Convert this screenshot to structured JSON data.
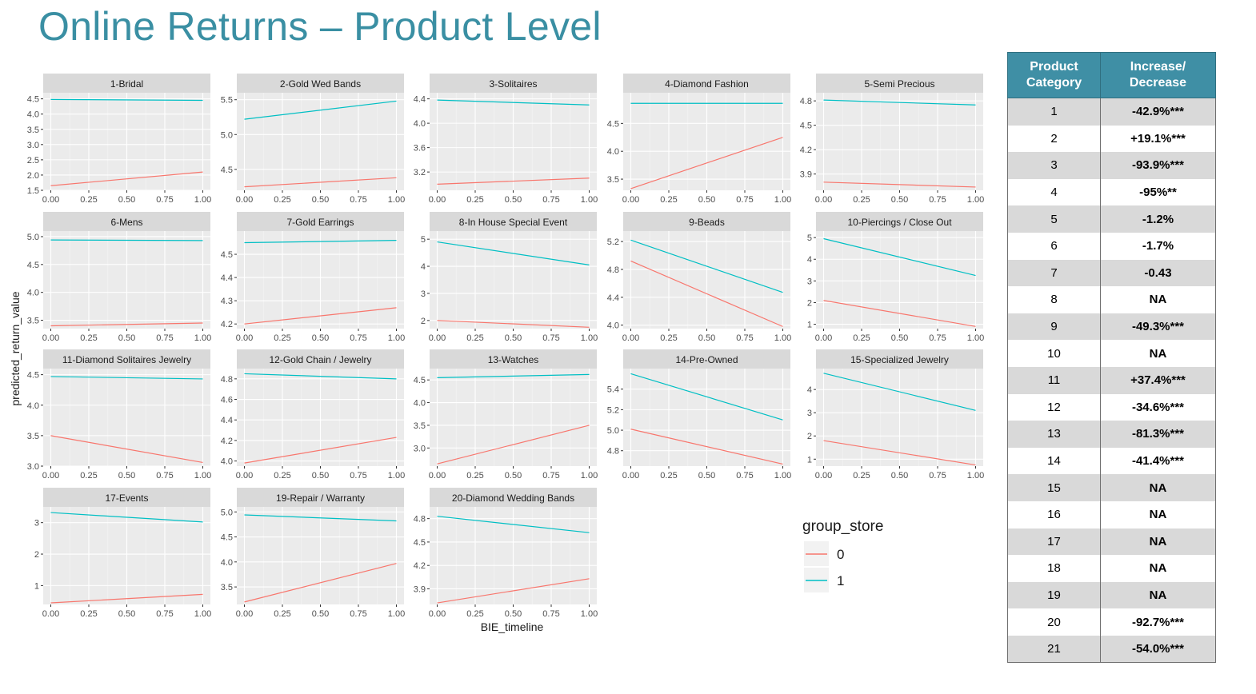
{
  "slide": {
    "title": "Online Returns – Product Level"
  },
  "chart_data": {
    "type": "line",
    "xlabel": "BIE_timeline",
    "ylabel": "predicted_return_value",
    "x": [
      0,
      1
    ],
    "x_ticks": [
      "0.00",
      "0.25",
      "0.50",
      "0.75",
      "1.00"
    ],
    "legend": {
      "title": "group_store",
      "entries": [
        "0",
        "1"
      ],
      "colors": [
        "#f8766d",
        "#00bfc4"
      ],
      "position": "bottom-right"
    },
    "panels": [
      {
        "title": "1-Bridal",
        "ylim": [
          1.5,
          4.7
        ],
        "yticks": [
          "1.5",
          "2.0",
          "2.5",
          "3.0",
          "3.5",
          "4.0",
          "4.5"
        ],
        "series": [
          {
            "name": "0",
            "values": [
              1.65,
              2.1
            ]
          },
          {
            "name": "1",
            "values": [
              4.48,
              4.45
            ]
          }
        ]
      },
      {
        "title": "2-Gold Wed Bands",
        "ylim": [
          4.2,
          5.6
        ],
        "yticks": [
          "4.5",
          "5.0",
          "5.5"
        ],
        "series": [
          {
            "name": "0",
            "values": [
              4.25,
              4.38
            ]
          },
          {
            "name": "1",
            "values": [
              5.22,
              5.48
            ]
          }
        ]
      },
      {
        "title": "3-Solitaires",
        "ylim": [
          2.9,
          4.5
        ],
        "yticks": [
          "3.2",
          "3.6",
          "4.0",
          "4.4"
        ],
        "series": [
          {
            "name": "0",
            "values": [
              3.0,
              3.1
            ]
          },
          {
            "name": "1",
            "values": [
              4.38,
              4.3
            ]
          }
        ]
      },
      {
        "title": "4-Diamond Fashion",
        "ylim": [
          3.3,
          5.05
        ],
        "yticks": [
          "3.5",
          "4.0",
          "4.5"
        ],
        "series": [
          {
            "name": "0",
            "values": [
              3.33,
              4.25
            ]
          },
          {
            "name": "1",
            "values": [
              4.86,
              4.86
            ]
          }
        ]
      },
      {
        "title": "5-Semi Precious",
        "ylim": [
          3.7,
          4.9
        ],
        "yticks": [
          "3.9",
          "4.2",
          "4.5",
          "4.8"
        ],
        "series": [
          {
            "name": "0",
            "values": [
              3.8,
              3.74
            ]
          },
          {
            "name": "1",
            "values": [
              4.81,
              4.75
            ]
          }
        ]
      },
      {
        "title": "6-Mens",
        "ylim": [
          3.35,
          5.1
        ],
        "yticks": [
          "3.5",
          "4.0",
          "4.5",
          "5.0"
        ],
        "series": [
          {
            "name": "0",
            "values": [
              3.4,
              3.45
            ]
          },
          {
            "name": "1",
            "values": [
              4.94,
              4.93
            ]
          }
        ]
      },
      {
        "title": "7-Gold Earrings",
        "ylim": [
          4.18,
          4.6
        ],
        "yticks": [
          "4.2",
          "4.3",
          "4.4",
          "4.5"
        ],
        "series": [
          {
            "name": "0",
            "values": [
              4.2,
              4.27
            ]
          },
          {
            "name": "1",
            "values": [
              4.55,
              4.56
            ]
          }
        ]
      },
      {
        "title": "8-In House Special Event",
        "ylim": [
          1.7,
          5.3
        ],
        "yticks": [
          "2",
          "3",
          "4",
          "5"
        ],
        "series": [
          {
            "name": "0",
            "values": [
              2.0,
              1.75
            ]
          },
          {
            "name": "1",
            "values": [
              4.9,
              4.05
            ]
          }
        ]
      },
      {
        "title": "9-Beads",
        "ylim": [
          3.95,
          5.35
        ],
        "yticks": [
          "4.0",
          "4.4",
          "4.8",
          "5.2"
        ],
        "series": [
          {
            "name": "0",
            "values": [
              4.92,
              3.98
            ]
          },
          {
            "name": "1",
            "values": [
              5.22,
              4.47
            ]
          }
        ]
      },
      {
        "title": "10-Piercings / Close Out",
        "ylim": [
          0.8,
          5.3
        ],
        "yticks": [
          "1",
          "2",
          "3",
          "4",
          "5"
        ],
        "series": [
          {
            "name": "0",
            "values": [
              2.1,
              0.9
            ]
          },
          {
            "name": "1",
            "values": [
              4.95,
              3.25
            ]
          }
        ]
      },
      {
        "title": "11-Diamond Solitaires Jewelry",
        "ylim": [
          3.0,
          4.6
        ],
        "yticks": [
          "3.0",
          "3.5",
          "4.0",
          "4.5"
        ],
        "series": [
          {
            "name": "0",
            "values": [
              3.5,
              3.06
            ]
          },
          {
            "name": "1",
            "values": [
              4.47,
              4.43
            ]
          }
        ]
      },
      {
        "title": "12-Gold Chain / Jewelry",
        "ylim": [
          3.95,
          4.9
        ],
        "yticks": [
          "4.0",
          "4.2",
          "4.4",
          "4.6",
          "4.8"
        ],
        "series": [
          {
            "name": "0",
            "values": [
              3.98,
              4.23
            ]
          },
          {
            "name": "1",
            "values": [
              4.85,
              4.8
            ]
          }
        ]
      },
      {
        "title": "13-Watches",
        "ylim": [
          2.6,
          4.75
        ],
        "yticks": [
          "3.0",
          "3.5",
          "4.0",
          "4.5"
        ],
        "series": [
          {
            "name": "0",
            "values": [
              2.65,
              3.5
            ]
          },
          {
            "name": "1",
            "values": [
              4.55,
              4.62
            ]
          }
        ]
      },
      {
        "title": "14-Pre-Owned",
        "ylim": [
          4.65,
          5.6
        ],
        "yticks": [
          "4.8",
          "5.0",
          "5.2",
          "5.4"
        ],
        "series": [
          {
            "name": "0",
            "values": [
              5.01,
              4.67
            ]
          },
          {
            "name": "1",
            "values": [
              5.55,
              5.1
            ]
          }
        ]
      },
      {
        "title": "15-Specialized Jewelry",
        "ylim": [
          0.7,
          4.9
        ],
        "yticks": [
          "1",
          "2",
          "3",
          "4"
        ],
        "series": [
          {
            "name": "0",
            "values": [
              1.8,
              0.75
            ]
          },
          {
            "name": "1",
            "values": [
              4.7,
              3.1
            ]
          }
        ]
      },
      {
        "title": "17-Events",
        "ylim": [
          0.4,
          3.5
        ],
        "yticks": [
          "1",
          "2",
          "3"
        ],
        "series": [
          {
            "name": "0",
            "values": [
              0.45,
              0.72
            ]
          },
          {
            "name": "1",
            "values": [
              3.32,
              3.02
            ]
          }
        ]
      },
      {
        "title": "19-Repair / Warranty",
        "ylim": [
          3.15,
          5.1
        ],
        "yticks": [
          "3.5",
          "4.0",
          "4.5",
          "5.0"
        ],
        "series": [
          {
            "name": "0",
            "values": [
              3.2,
              3.97
            ]
          },
          {
            "name": "1",
            "values": [
              4.94,
              4.82
            ]
          }
        ]
      },
      {
        "title": "20-Diamond Wedding Bands",
        "ylim": [
          3.7,
          4.95
        ],
        "yticks": [
          "3.9",
          "4.2",
          "4.5",
          "4.8"
        ],
        "series": [
          {
            "name": "0",
            "values": [
              3.72,
              4.03
            ]
          },
          {
            "name": "1",
            "values": [
              4.83,
              4.62
            ]
          }
        ]
      }
    ]
  },
  "table": {
    "header_category": "Product Category",
    "header_change": "Increase/ Decrease",
    "rows": [
      {
        "category": "1",
        "change": "-42.9%***"
      },
      {
        "category": "2",
        "change": "+19.1%***"
      },
      {
        "category": "3",
        "change": "-93.9%***"
      },
      {
        "category": "4",
        "change": "-95%**"
      },
      {
        "category": "5",
        "change": "-1.2%"
      },
      {
        "category": "6",
        "change": "-1.7%"
      },
      {
        "category": "7",
        "change": "-0.43"
      },
      {
        "category": "8",
        "change": "NA"
      },
      {
        "category": "9",
        "change": "-49.3%***"
      },
      {
        "category": "10",
        "change": "NA"
      },
      {
        "category": "11",
        "change": "+37.4%***"
      },
      {
        "category": "12",
        "change": "-34.6%***"
      },
      {
        "category": "13",
        "change": "-81.3%***"
      },
      {
        "category": "14",
        "change": "-41.4%***"
      },
      {
        "category": "15",
        "change": "NA"
      },
      {
        "category": "16",
        "change": "NA"
      },
      {
        "category": "17",
        "change": "NA"
      },
      {
        "category": "18",
        "change": "NA"
      },
      {
        "category": "19",
        "change": "NA"
      },
      {
        "category": "20",
        "change": "-92.7%***"
      },
      {
        "category": "21",
        "change": "-54.0%***"
      }
    ]
  }
}
